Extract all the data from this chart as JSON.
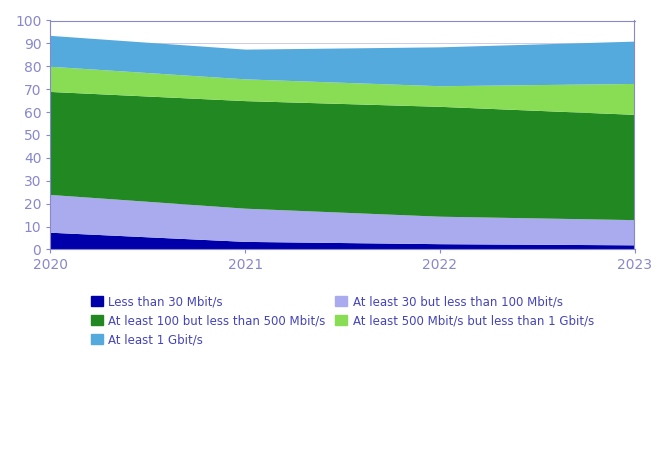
{
  "years": [
    2020,
    2021,
    2022,
    2023
  ],
  "series": [
    {
      "label": "Less than 30 Mbit/s",
      "color": "#0000aa",
      "values": [
        7.5,
        3.5,
        2.5,
        2.0
      ]
    },
    {
      "label": "At least 30 but less than 100 Mbit/s",
      "color": "#aaaaee",
      "values": [
        16.5,
        14.5,
        12.0,
        11.0
      ]
    },
    {
      "label": "At least 100 but less than 500 Mbit/s",
      "color": "#228822",
      "values": [
        45.0,
        47.0,
        48.0,
        46.0
      ]
    },
    {
      "label": "At least 500 Mbit/s but less than 1 Gbit/s",
      "color": "#88dd55",
      "values": [
        11.0,
        9.5,
        9.0,
        13.5
      ]
    },
    {
      "label": "At least 1 Gbit/s",
      "color": "#55aadd",
      "values": [
        13.5,
        13.0,
        17.0,
        18.5
      ]
    }
  ],
  "ylim": [
    0,
    100
  ],
  "yticks": [
    0,
    10,
    20,
    30,
    40,
    50,
    60,
    70,
    80,
    90,
    100
  ],
  "xticks": [
    2020,
    2021,
    2022,
    2023
  ],
  "legend_order": [
    0,
    2,
    4,
    1,
    3
  ],
  "legend_ncol": 2,
  "background_color": "#ffffff",
  "axis_color": "#8888cc",
  "tick_color": "#6666bb",
  "label_color": "#4444bb",
  "grid_color": "#aaaadd"
}
